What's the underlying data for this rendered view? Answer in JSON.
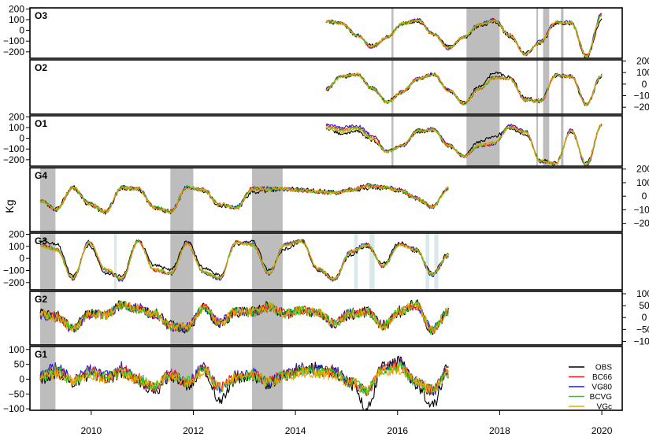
{
  "chart_data": {
    "type": "line",
    "ylabel": "Kg",
    "xlim": [
      2008.8,
      2020.4
    ],
    "x_ticks": [
      {
        "value": 2010,
        "label": "2010"
      },
      {
        "value": 2012,
        "label": "2012"
      },
      {
        "value": 2014,
        "label": "2014"
      },
      {
        "value": 2016,
        "label": "2016"
      },
      {
        "value": 2018,
        "label": "2018"
      },
      {
        "value": 2020,
        "label": "2020"
      }
    ],
    "legend": {
      "placement": "bottom-right",
      "entries": [
        {
          "label": "OBS",
          "color": "#000000"
        },
        {
          "label": "BC66",
          "color": "#e41a1c"
        },
        {
          "label": "VG80",
          "color": "#1a1adb"
        },
        {
          "label": "BCVG",
          "color": "#19d219"
        },
        {
          "label": "VGc",
          "color": "#f0a500"
        }
      ]
    },
    "panels": [
      {
        "name": "O3",
        "ylim": [
          -260,
          210
        ],
        "axis_side": "left",
        "ticks": [
          {
            "value": 200,
            "label": "200"
          },
          {
            "value": 100,
            "label": "100"
          },
          {
            "value": 0,
            "label": "0"
          },
          {
            "value": -100,
            "label": "−100"
          },
          {
            "value": -200,
            "label": "−200"
          }
        ],
        "x_range": [
          2014.6,
          2020.0
        ],
        "seasonal": {
          "amp": 130,
          "phase": 0.35,
          "offset": 0
        },
        "gaps": [
          [
            2017.35,
            2018.0
          ]
        ],
        "thin_gaps": [
          [
            2015.88,
            2015.92
          ],
          [
            2018.72,
            2018.74
          ],
          [
            2018.85,
            2018.97
          ],
          [
            2019.2,
            2019.25
          ]
        ],
        "series": [
          {
            "name": "OBS",
            "values": [
              80,
              60,
              -50,
              -140,
              -70,
              60,
              80,
              -40,
              -150,
              -70,
              40,
              80,
              -60,
              -210,
              -120,
              60,
              60,
              -250,
              100
            ]
          },
          {
            "name": "VG80",
            "values": [
              90,
              70,
              -40,
              -160,
              -60,
              70,
              100,
              -30,
              -170,
              -60,
              60,
              100,
              -40,
              -230,
              -100,
              80,
              80,
              -230,
              160
            ]
          },
          {
            "name": "VGc",
            "values": [
              85,
              65,
              -45,
              -150,
              -65,
              65,
              90,
              -35,
              -160,
              -65,
              50,
              90,
              -50,
              -220,
              -110,
              70,
              70,
              -240,
              130
            ]
          }
        ]
      },
      {
        "name": "O2",
        "ylim": [
          -260,
          210
        ],
        "axis_side": "right",
        "ticks": [
          {
            "value": 200,
            "label": "200"
          },
          {
            "value": 100,
            "label": "100"
          },
          {
            "value": 0,
            "label": "0"
          },
          {
            "value": -100,
            "label": "−100"
          },
          {
            "value": -200,
            "label": "−200"
          }
        ],
        "x_range": [
          2014.6,
          2020.0
        ],
        "seasonal": {
          "amp": 110,
          "phase": 0.35,
          "offset": 0
        },
        "gaps": [
          [
            2017.35,
            2018.0
          ]
        ],
        "thin_gaps": [
          [
            2015.88,
            2015.92
          ],
          [
            2018.72,
            2018.74
          ],
          [
            2018.85,
            2018.97
          ],
          [
            2019.2,
            2019.25
          ]
        ],
        "series": [
          {
            "name": "OBS",
            "values": [
              -50,
              60,
              80,
              -40,
              -150,
              -70,
              40,
              80,
              -60,
              -160,
              -20,
              100,
              60,
              -120,
              -140,
              70,
              60,
              -180,
              70
            ]
          },
          {
            "name": "VG80",
            "values": [
              -40,
              70,
              90,
              -30,
              -160,
              -60,
              50,
              90,
              -50,
              -170,
              -40,
              60,
              50,
              -140,
              -150,
              80,
              70,
              -170,
              80
            ]
          },
          {
            "name": "VGc",
            "values": [
              -45,
              65,
              85,
              -35,
              -155,
              -65,
              45,
              85,
              -55,
              -165,
              -45,
              55,
              45,
              -135,
              -145,
              75,
              65,
              -175,
              75
            ]
          }
        ]
      },
      {
        "name": "O1",
        "ylim": [
          -260,
          210
        ],
        "axis_side": "left",
        "ticks": [
          {
            "value": 200,
            "label": "200"
          },
          {
            "value": 100,
            "label": "100"
          },
          {
            "value": 0,
            "label": "0"
          },
          {
            "value": -100,
            "label": "−100"
          },
          {
            "value": -200,
            "label": "−200"
          }
        ],
        "x_range": [
          2014.6,
          2020.0
        ],
        "seasonal": {
          "amp": 120,
          "phase": 0.35,
          "offset": 0
        },
        "gaps": [
          [
            2017.35,
            2018.0
          ]
        ],
        "thin_gaps": [
          [
            2015.88,
            2015.92
          ],
          [
            2018.72,
            2018.74
          ],
          [
            2018.85,
            2018.97
          ],
          [
            2019.2,
            2019.25
          ]
        ],
        "series": [
          {
            "name": "OBS",
            "values": [
              90,
              40,
              70,
              -20,
              -120,
              -60,
              60,
              70,
              -80,
              -160,
              -30,
              20,
              90,
              40,
              -200,
              -230,
              60,
              -230,
              120
            ]
          },
          {
            "name": "VG80",
            "values": [
              130,
              100,
              120,
              30,
              -120,
              -70,
              80,
              90,
              -60,
              -170,
              -80,
              -50,
              120,
              70,
              -220,
              -240,
              80,
              -260,
              120
            ]
          },
          {
            "name": "VGc",
            "values": [
              100,
              60,
              90,
              -10,
              -130,
              -65,
              65,
              75,
              -70,
              -165,
              -60,
              -40,
              100,
              50,
              -210,
              -235,
              65,
              -240,
              125
            ]
          }
        ]
      },
      {
        "name": "G4",
        "ylim": [
          -260,
          210
        ],
        "axis_side": "right",
        "ticks": [
          {
            "value": 200,
            "label": "200"
          },
          {
            "value": 100,
            "label": "100"
          },
          {
            "value": 0,
            "label": "0"
          },
          {
            "value": -100,
            "label": "−100"
          },
          {
            "value": -200,
            "label": "−200"
          }
        ],
        "x_range": [
          2009.0,
          2017.0
        ],
        "seasonal": {
          "amp": 80,
          "phase": 0.15,
          "offset": 0
        },
        "gaps": [
          [
            2009.0,
            2009.3
          ],
          [
            2011.55,
            2012.0
          ],
          [
            2013.15,
            2013.75
          ]
        ],
        "thin_gaps": [],
        "series": [
          {
            "name": "OBS",
            "values": [
              -40,
              -90,
              70,
              -60,
              -120,
              60,
              50,
              -90,
              -120,
              60,
              40,
              -70,
              -90,
              30,
              40,
              60,
              50,
              40,
              30,
              40,
              60,
              60,
              40,
              -20,
              -70,
              60
            ]
          },
          {
            "name": "VG80",
            "values": [
              -30,
              -100,
              60,
              -50,
              -110,
              70,
              60,
              -80,
              -110,
              70,
              50,
              -60,
              -80,
              60,
              60,
              50,
              40,
              30,
              20,
              50,
              80,
              70,
              50,
              -10,
              -80,
              55
            ]
          },
          {
            "name": "VGc",
            "values": [
              -35,
              -95,
              65,
              -55,
              -115,
              65,
              55,
              -85,
              -115,
              65,
              45,
              -65,
              -85,
              50,
              50,
              55,
              45,
              35,
              25,
              45,
              70,
              65,
              45,
              -15,
              -75,
              58
            ]
          }
        ]
      },
      {
        "name": "G3",
        "ylim": [
          -260,
          210
        ],
        "axis_side": "left",
        "ticks": [
          {
            "value": 200,
            "label": "200"
          },
          {
            "value": 100,
            "label": "100"
          },
          {
            "value": 0,
            "label": "0"
          },
          {
            "value": -100,
            "label": "−100"
          },
          {
            "value": -200,
            "label": "−200"
          }
        ],
        "x_range": [
          2009.0,
          2017.0
        ],
        "seasonal": {
          "amp": 110,
          "phase": 0.15,
          "offset": 0
        },
        "gaps": [
          [
            2009.0,
            2009.3
          ],
          [
            2011.55,
            2012.0
          ],
          [
            2013.15,
            2013.75
          ]
        ],
        "thin_gaps": [
          [
            2010.45,
            2010.5
          ],
          [
            2015.15,
            2015.22
          ],
          [
            2015.45,
            2015.55
          ],
          [
            2016.55,
            2016.62
          ],
          [
            2016.72,
            2016.8
          ]
        ],
        "series": [
          {
            "name": "OBS",
            "values": [
              150,
              120,
              -150,
              110,
              -120,
              -150,
              150,
              -60,
              -90,
              140,
              -80,
              -140,
              120,
              140,
              -100,
              80,
              140,
              -100,
              -160,
              30,
              100,
              -40,
              130,
              60,
              -120,
              40
            ]
          },
          {
            "name": "VG80",
            "values": [
              120,
              80,
              -170,
              140,
              -100,
              -180,
              150,
              -100,
              -130,
              130,
              -120,
              -170,
              140,
              120,
              -130,
              120,
              150,
              -90,
              -180,
              60,
              120,
              -70,
              120,
              80,
              -140,
              20
            ]
          },
          {
            "name": "VGc",
            "values": [
              100,
              70,
              -160,
              130,
              -90,
              -160,
              140,
              -90,
              -120,
              120,
              -110,
              -160,
              130,
              110,
              -120,
              110,
              140,
              -80,
              -170,
              50,
              110,
              -60,
              110,
              70,
              -130,
              30
            ]
          }
        ]
      },
      {
        "name": "G2",
        "ylim": [
          -115,
          110
        ],
        "axis_side": "right",
        "ticks": [
          {
            "value": 100,
            "label": "100"
          },
          {
            "value": 50,
            "label": "50"
          },
          {
            "value": 0,
            "label": "0"
          },
          {
            "value": -50,
            "label": "−50"
          },
          {
            "value": -100,
            "label": "−100"
          }
        ],
        "x_range": [
          2009.0,
          2017.0
        ],
        "seasonal": {
          "amp": 20,
          "phase": 0.15,
          "offset": 0
        },
        "gaps": [
          [
            2009.0,
            2009.3
          ],
          [
            2011.55,
            2012.0
          ],
          [
            2013.15,
            2013.75
          ]
        ],
        "thin_gaps": [],
        "series": [
          {
            "name": "OBS",
            "values": [
              20,
              10,
              -40,
              20,
              10,
              60,
              30,
              20,
              -30,
              -50,
              40,
              -30,
              20,
              30,
              50,
              10,
              30,
              20,
              -30,
              10,
              30,
              -40,
              20,
              60,
              -60,
              20
            ]
          },
          {
            "name": "VG80",
            "values": [
              10,
              0,
              -50,
              10,
              10,
              50,
              40,
              10,
              -40,
              -40,
              40,
              -20,
              30,
              20,
              40,
              20,
              30,
              20,
              -20,
              20,
              20,
              -30,
              30,
              50,
              -50,
              30
            ]
          },
          {
            "name": "VGc",
            "values": [
              15,
              5,
              -45,
              15,
              10,
              55,
              35,
              15,
              -35,
              -45,
              40,
              -25,
              25,
              25,
              45,
              15,
              30,
              20,
              -25,
              15,
              25,
              -35,
              25,
              55,
              -55,
              25
            ]
          }
        ]
      },
      {
        "name": "G1",
        "ylim": [
          -105,
          110
        ],
        "axis_side": "left",
        "ticks": [
          {
            "value": 100,
            "label": "100"
          },
          {
            "value": 50,
            "label": "50"
          },
          {
            "value": 0,
            "label": "0"
          },
          {
            "value": -50,
            "label": "−50"
          },
          {
            "value": -100,
            "label": "−100"
          }
        ],
        "x_range": [
          2009.0,
          2017.0
        ],
        "seasonal": {
          "amp": 10,
          "phase": 0.15,
          "offset": 0
        },
        "gaps": [
          [
            2009.0,
            2009.3
          ],
          [
            2011.55,
            2012.0
          ],
          [
            2013.15,
            2013.75
          ]
        ],
        "thin_gaps": [],
        "series": [
          {
            "name": "OBS",
            "values": [
              0,
              20,
              -10,
              10,
              0,
              20,
              -10,
              -40,
              10,
              -20,
              30,
              -70,
              0,
              10,
              -20,
              10,
              30,
              40,
              20,
              -20,
              -100,
              40,
              60,
              -20,
              -90,
              40
            ]
          },
          {
            "name": "VG80",
            "values": [
              10,
              40,
              0,
              30,
              10,
              40,
              0,
              -30,
              20,
              -10,
              40,
              -30,
              10,
              20,
              -10,
              20,
              40,
              30,
              30,
              -10,
              -40,
              40,
              50,
              -10,
              -40,
              30
            ]
          },
          {
            "name": "VGc",
            "values": [
              5,
              20,
              -5,
              15,
              5,
              20,
              -5,
              -25,
              10,
              -10,
              25,
              -25,
              5,
              10,
              -10,
              10,
              20,
              20,
              15,
              -10,
              -35,
              25,
              35,
              -10,
              -30,
              20
            ]
          }
        ]
      }
    ]
  }
}
